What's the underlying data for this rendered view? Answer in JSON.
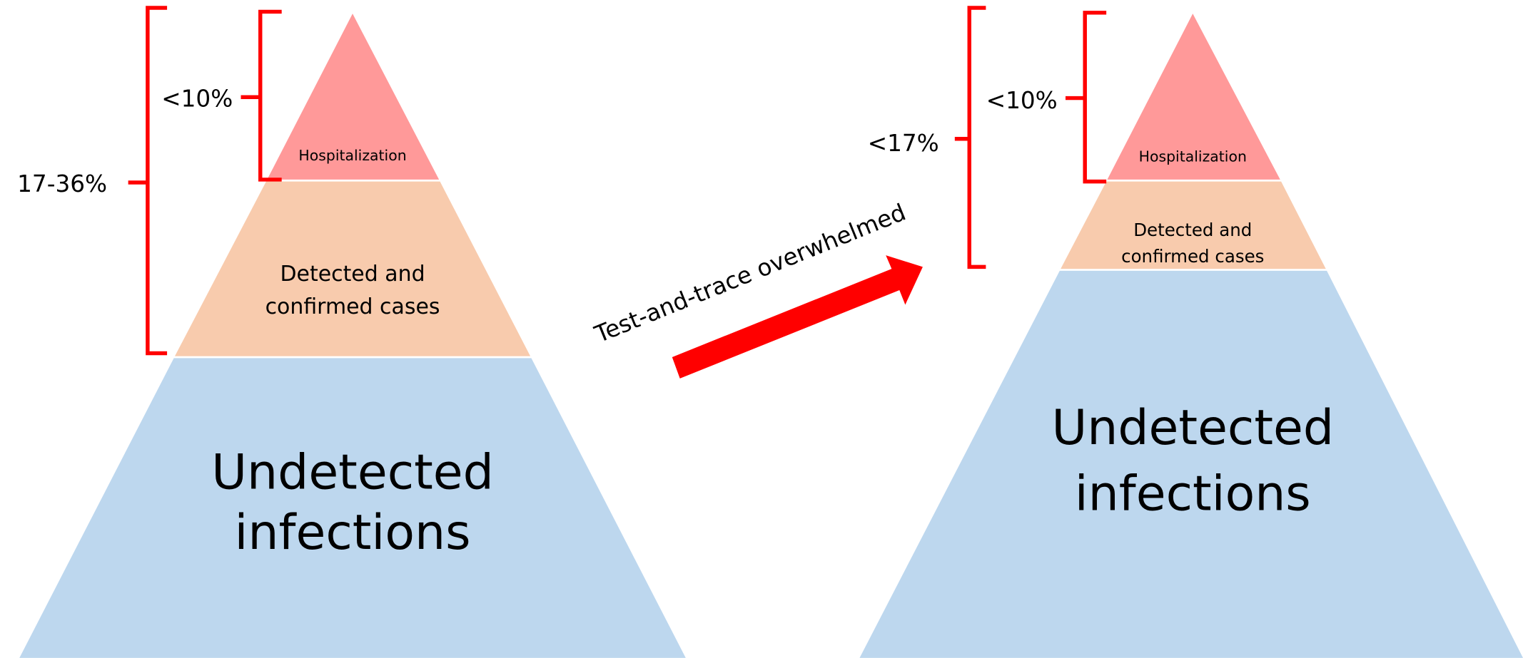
{
  "left": {
    "hospitalization": "Hospitalization",
    "detected": [
      "Detected and",
      "confirmed cases"
    ],
    "undetected": [
      "Undetected",
      "infections"
    ],
    "inner_bracket": "<10%",
    "outer_bracket": "17-36%"
  },
  "arrow_label": "Test-and-trace overwhelmed",
  "right": {
    "hospitalization": "Hospitalization",
    "detected": [
      "Detected and",
      "confirmed cases"
    ],
    "undetected": [
      "Undetected",
      "infections"
    ],
    "inner_bracket": "<10%",
    "outer_bracket": "<17%"
  }
}
